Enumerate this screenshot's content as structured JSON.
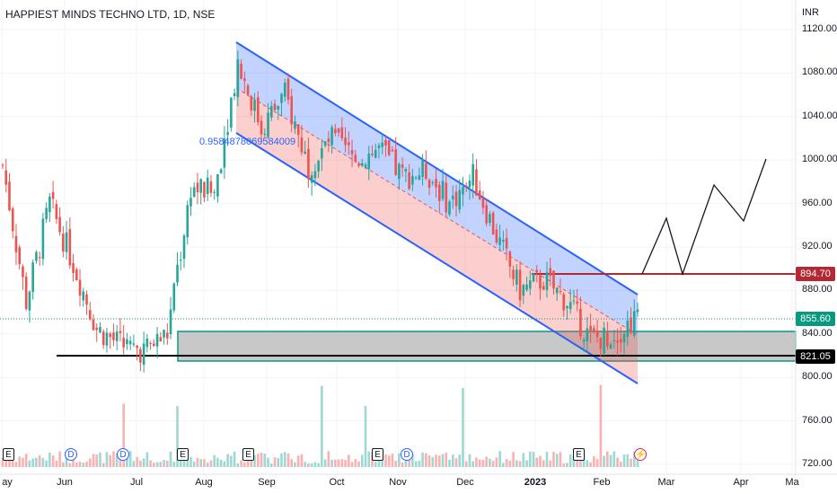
{
  "header": {
    "title": "HAPPIEST MINDS TECHNO LTD, 1D, NSE",
    "currency": "INR"
  },
  "chart_data": {
    "type": "candlestick",
    "symbol": "HAPPIEST MINDS TECHNO LTD",
    "interval": "1D",
    "exchange": "NSE",
    "y_axis": {
      "unit": "INR",
      "ticks": [
        "1120.00",
        "1080.00",
        "1040.00",
        "1000.00",
        "960.00",
        "920.00",
        "880.00",
        "840.00",
        "800.00",
        "760.00",
        "720.00"
      ],
      "range": [
        715,
        1140
      ]
    },
    "x_axis": {
      "ticks": [
        "ay",
        "Jun",
        "Jul",
        "Aug",
        "Sep",
        "Oct",
        "Nov",
        "Dec",
        "2023",
        "Feb",
        "Mar",
        "Apr",
        "Ma"
      ]
    },
    "price_labels": {
      "last_price": "855.60",
      "resistance": "894.70",
      "support": "821.05"
    },
    "annotations": {
      "fib_value": "0.9584878069584009"
    },
    "event_markers": [
      "E",
      "D",
      "D",
      "E",
      "E",
      "E",
      "D",
      "E",
      "E"
    ],
    "colors": {
      "up": "#26a69a",
      "down": "#ef5350",
      "channel_line": "#2962ff",
      "resistance": "#b22833",
      "support": "#000000",
      "zone_border": "#089981"
    },
    "price_path_approx": [
      {
        "date": "May",
        "close": 995
      },
      {
        "date": "late May",
        "close": 870
      },
      {
        "date": "early Jun",
        "close": 960
      },
      {
        "date": "mid Jun",
        "close": 905
      },
      {
        "date": "late Jun",
        "close": 845
      },
      {
        "date": "early Jul",
        "close": 830
      },
      {
        "date": "mid Jul",
        "close": 825
      },
      {
        "date": "late Jul",
        "close": 840
      },
      {
        "date": "early Aug",
        "close": 975
      },
      {
        "date": "mid Aug",
        "close": 970
      },
      {
        "date": "late Aug",
        "close": 1090
      },
      {
        "date": "early Sep",
        "close": 1030
      },
      {
        "date": "mid Sep",
        "close": 1060
      },
      {
        "date": "late Sep",
        "close": 995
      },
      {
        "date": "early Oct",
        "close": 1020
      },
      {
        "date": "mid Oct",
        "close": 1000
      },
      {
        "date": "late Oct",
        "close": 1010
      },
      {
        "date": "early Nov",
        "close": 985
      },
      {
        "date": "mid Nov",
        "close": 990
      },
      {
        "date": "late Nov",
        "close": 960
      },
      {
        "date": "early Dec",
        "close": 985
      },
      {
        "date": "mid Dec",
        "close": 930
      },
      {
        "date": "late Dec",
        "close": 880
      },
      {
        "date": "early Jan",
        "close": 890
      },
      {
        "date": "mid Jan",
        "close": 870
      },
      {
        "date": "late Jan",
        "close": 835
      },
      {
        "date": "early Feb",
        "close": 840
      },
      {
        "date": "mid Feb",
        "close": 855.6
      }
    ]
  }
}
